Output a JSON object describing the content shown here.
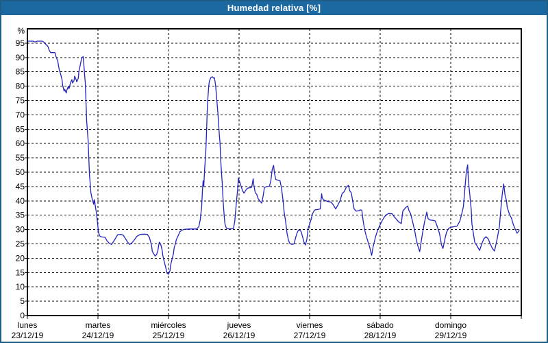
{
  "window": {
    "title": "Humedad relativa [%]"
  },
  "colors": {
    "titlebar_bg": "#1C69A1",
    "titlebar_fg": "#FFFFFF",
    "frame_border": "#1E5E86",
    "grid": "#000000",
    "axis": "#000000",
    "plot_bg": "#FFFFFF",
    "line": "#2222C0"
  },
  "chart_data": {
    "type": "line",
    "title": "Humedad relativa [%]",
    "unit_label": "%",
    "ylim": [
      0,
      100
    ],
    "y_tick_step": 5,
    "y_ticks": [
      0,
      5,
      10,
      15,
      20,
      25,
      30,
      35,
      40,
      45,
      50,
      55,
      60,
      65,
      70,
      75,
      80,
      85,
      90,
      95
    ],
    "x_range_days": [
      0,
      7
    ],
    "x_ticks": [
      {
        "day": "lunes",
        "date": "23/12/19"
      },
      {
        "day": "martes",
        "date": "24/12/19"
      },
      {
        "day": "miércoles",
        "date": "25/12/19"
      },
      {
        "day": "jueves",
        "date": "26/12/19"
      },
      {
        "day": "viernes",
        "date": "27/12/19"
      },
      {
        "day": "sábado",
        "date": "28/12/19"
      },
      {
        "day": "domingo",
        "date": "29/12/19"
      }
    ],
    "grid": "dashed",
    "legend_position": "none",
    "series": [
      {
        "name": "Humedad relativa [%]",
        "points": [
          [
            0.0,
            95.7
          ],
          [
            0.08,
            95.7
          ],
          [
            0.11,
            95.4
          ],
          [
            0.14,
            95.7
          ],
          [
            0.21,
            95.7
          ],
          [
            0.24,
            95.2
          ],
          [
            0.26,
            94.6
          ],
          [
            0.29,
            93.9
          ],
          [
            0.31,
            92.5
          ],
          [
            0.33,
            91.7
          ],
          [
            0.39,
            91.7
          ],
          [
            0.41,
            90.0
          ],
          [
            0.43,
            88.7
          ],
          [
            0.45,
            85.9
          ],
          [
            0.47,
            84.3
          ],
          [
            0.49,
            82.3
          ],
          [
            0.5,
            80.3
          ],
          [
            0.52,
            78.3
          ],
          [
            0.53,
            78.9
          ],
          [
            0.55,
            77.6
          ],
          [
            0.56,
            78.7
          ],
          [
            0.58,
            79.9
          ],
          [
            0.59,
            79.1
          ],
          [
            0.61,
            81.1
          ],
          [
            0.63,
            82.3
          ],
          [
            0.64,
            81.1
          ],
          [
            0.66,
            81.9
          ],
          [
            0.67,
            83.5
          ],
          [
            0.69,
            82.3
          ],
          [
            0.7,
            81.5
          ],
          [
            0.72,
            82.7
          ],
          [
            0.73,
            85.1
          ],
          [
            0.75,
            87.5
          ],
          [
            0.77,
            89.9
          ],
          [
            0.79,
            90.3
          ],
          [
            0.8,
            87.5
          ],
          [
            0.81,
            84.3
          ],
          [
            0.82,
            81.1
          ],
          [
            0.83,
            75.0
          ],
          [
            0.84,
            68.0
          ],
          [
            0.86,
            61.2
          ],
          [
            0.88,
            49.2
          ],
          [
            0.9,
            42.8
          ],
          [
            0.92,
            40.4
          ],
          [
            0.94,
            38.8
          ],
          [
            0.95,
            40.4
          ],
          [
            0.97,
            37.0
          ],
          [
            0.98,
            35.6
          ],
          [
            0.99,
            33.2
          ],
          [
            1.0,
            30.8
          ],
          [
            1.01,
            28.8
          ],
          [
            1.03,
            27.6
          ],
          [
            1.06,
            27.4
          ],
          [
            1.1,
            27.3
          ],
          [
            1.13,
            26.0
          ],
          [
            1.16,
            25.2
          ],
          [
            1.19,
            24.8
          ],
          [
            1.22,
            25.8
          ],
          [
            1.25,
            27.0
          ],
          [
            1.28,
            28.2
          ],
          [
            1.33,
            28.3
          ],
          [
            1.36,
            28.0
          ],
          [
            1.39,
            26.8
          ],
          [
            1.42,
            25.6
          ],
          [
            1.45,
            24.8
          ],
          [
            1.48,
            25.3
          ],
          [
            1.51,
            26.2
          ],
          [
            1.55,
            27.6
          ],
          [
            1.6,
            28.3
          ],
          [
            1.66,
            28.4
          ],
          [
            1.7,
            28.3
          ],
          [
            1.73,
            27.2
          ],
          [
            1.76,
            24.4
          ],
          [
            1.77,
            22.4
          ],
          [
            1.81,
            20.8
          ],
          [
            1.83,
            21.2
          ],
          [
            1.85,
            22.8
          ],
          [
            1.86,
            24.4
          ],
          [
            1.87,
            25.6
          ],
          [
            1.89,
            24.8
          ],
          [
            1.91,
            22.8
          ],
          [
            1.92,
            20.8
          ],
          [
            1.94,
            18.8
          ],
          [
            1.96,
            16.8
          ],
          [
            1.98,
            14.8
          ],
          [
            2.0,
            14.4
          ],
          [
            2.02,
            15.6
          ],
          [
            2.03,
            17.6
          ],
          [
            2.05,
            19.6
          ],
          [
            2.07,
            21.6
          ],
          [
            2.08,
            23.6
          ],
          [
            2.1,
            25.2
          ],
          [
            2.11,
            26.4
          ],
          [
            2.14,
            28.0
          ],
          [
            2.16,
            29.2
          ],
          [
            2.19,
            29.8
          ],
          [
            2.23,
            30.1
          ],
          [
            2.3,
            30.2
          ],
          [
            2.4,
            30.2
          ],
          [
            2.43,
            31.0
          ],
          [
            2.45,
            33.5
          ],
          [
            2.47,
            38.0
          ],
          [
            2.48,
            43.0
          ],
          [
            2.49,
            47.0
          ],
          [
            2.5,
            45.0
          ],
          [
            2.51,
            50.0
          ],
          [
            2.53,
            58.0
          ],
          [
            2.54,
            64.6
          ],
          [
            2.55,
            72.0
          ],
          [
            2.56,
            76.6
          ],
          [
            2.57,
            80.0
          ],
          [
            2.58,
            81.8
          ],
          [
            2.6,
            83.0
          ],
          [
            2.62,
            83.3
          ],
          [
            2.64,
            82.8
          ],
          [
            2.65,
            83.0
          ],
          [
            2.66,
            81.5
          ],
          [
            2.67,
            79.7
          ],
          [
            2.68,
            76.6
          ],
          [
            2.7,
            70.6
          ],
          [
            2.72,
            63.0
          ],
          [
            2.73,
            60.2
          ],
          [
            2.74,
            54.2
          ],
          [
            2.75,
            50.0
          ],
          [
            2.76,
            46.6
          ],
          [
            2.77,
            42.0
          ],
          [
            2.78,
            38.0
          ],
          [
            2.79,
            34.5
          ],
          [
            2.8,
            32.0
          ],
          [
            2.82,
            30.4
          ],
          [
            2.86,
            30.2
          ],
          [
            2.92,
            30.3
          ],
          [
            2.94,
            33.0
          ],
          [
            2.96,
            39.0
          ],
          [
            2.98,
            44.0
          ],
          [
            2.99,
            47.8
          ],
          [
            3.01,
            46.5
          ],
          [
            3.03,
            45.0
          ],
          [
            3.05,
            43.5
          ],
          [
            3.07,
            42.7
          ],
          [
            3.09,
            43.5
          ],
          [
            3.11,
            44.2
          ],
          [
            3.13,
            44.5
          ],
          [
            3.16,
            44.6
          ],
          [
            3.18,
            44.8
          ],
          [
            3.2,
            47.7
          ],
          [
            3.21,
            45.5
          ],
          [
            3.23,
            42.8
          ],
          [
            3.25,
            42.3
          ],
          [
            3.27,
            40.8
          ],
          [
            3.3,
            39.8
          ],
          [
            3.32,
            39.2
          ],
          [
            3.34,
            41.5
          ],
          [
            3.36,
            44.7
          ],
          [
            3.4,
            45.0
          ],
          [
            3.43,
            45.1
          ],
          [
            3.45,
            47.0
          ],
          [
            3.47,
            51.0
          ],
          [
            3.49,
            52.4
          ],
          [
            3.5,
            49.8
          ],
          [
            3.52,
            47.5
          ],
          [
            3.55,
            47.2
          ],
          [
            3.58,
            47.0
          ],
          [
            3.6,
            44.7
          ],
          [
            3.62,
            40.7
          ],
          [
            3.64,
            35.9
          ],
          [
            3.66,
            32.8
          ],
          [
            3.68,
            28.7
          ],
          [
            3.7,
            26.3
          ],
          [
            3.72,
            25.1
          ],
          [
            3.75,
            24.8
          ],
          [
            3.78,
            25.0
          ],
          [
            3.8,
            27.0
          ],
          [
            3.82,
            28.7
          ],
          [
            3.84,
            29.7
          ],
          [
            3.86,
            29.8
          ],
          [
            3.88,
            29.3
          ],
          [
            3.9,
            27.5
          ],
          [
            3.92,
            25.6
          ],
          [
            3.94,
            24.6
          ],
          [
            3.96,
            26.5
          ],
          [
            3.98,
            30.4
          ],
          [
            4.0,
            31.9
          ],
          [
            4.02,
            33.5
          ],
          [
            4.04,
            35.4
          ],
          [
            4.06,
            36.4
          ],
          [
            4.08,
            36.9
          ],
          [
            4.12,
            37.0
          ],
          [
            4.15,
            37.2
          ],
          [
            4.17,
            42.5
          ],
          [
            4.18,
            41.0
          ],
          [
            4.2,
            40.3
          ],
          [
            4.23,
            40.0
          ],
          [
            4.27,
            39.7
          ],
          [
            4.3,
            39.6
          ],
          [
            4.33,
            38.8
          ],
          [
            4.37,
            37.2
          ],
          [
            4.4,
            38.5
          ],
          [
            4.43,
            40.0
          ],
          [
            4.46,
            42.5
          ],
          [
            4.49,
            43.2
          ],
          [
            4.52,
            44.8
          ],
          [
            4.55,
            45.4
          ],
          [
            4.57,
            43.5
          ],
          [
            4.59,
            42.8
          ],
          [
            4.61,
            40.0
          ],
          [
            4.63,
            37.2
          ],
          [
            4.66,
            36.4
          ],
          [
            4.7,
            36.6
          ],
          [
            4.72,
            36.9
          ],
          [
            4.74,
            36.7
          ],
          [
            4.76,
            32.8
          ],
          [
            4.78,
            30.0
          ],
          [
            4.8,
            28.0
          ],
          [
            4.83,
            25.5
          ],
          [
            4.85,
            24.0
          ],
          [
            4.88,
            21.0
          ],
          [
            4.9,
            24.0
          ],
          [
            4.92,
            26.0
          ],
          [
            4.93,
            27.1
          ],
          [
            4.96,
            29.5
          ],
          [
            5.0,
            31.7
          ],
          [
            5.03,
            33.2
          ],
          [
            5.06,
            34.4
          ],
          [
            5.09,
            35.2
          ],
          [
            5.12,
            35.6
          ],
          [
            5.17,
            35.5
          ],
          [
            5.2,
            34.4
          ],
          [
            5.23,
            33.6
          ],
          [
            5.26,
            32.7
          ],
          [
            5.3,
            32.1
          ],
          [
            5.32,
            36.4
          ],
          [
            5.36,
            37.6
          ],
          [
            5.39,
            38.2
          ],
          [
            5.41,
            36.5
          ],
          [
            5.43,
            35.6
          ],
          [
            5.46,
            32.7
          ],
          [
            5.49,
            29.5
          ],
          [
            5.51,
            26.8
          ],
          [
            5.53,
            24.6
          ],
          [
            5.56,
            22.3
          ],
          [
            5.58,
            25.5
          ],
          [
            5.6,
            28.7
          ],
          [
            5.63,
            32.8
          ],
          [
            5.66,
            36.1
          ],
          [
            5.68,
            33.8
          ],
          [
            5.71,
            33.3
          ],
          [
            5.75,
            33.2
          ],
          [
            5.78,
            33.0
          ],
          [
            5.81,
            31.0
          ],
          [
            5.84,
            28.7
          ],
          [
            5.87,
            24.6
          ],
          [
            5.89,
            23.4
          ],
          [
            5.92,
            27.0
          ],
          [
            5.94,
            29.0
          ],
          [
            5.97,
            30.4
          ],
          [
            6.0,
            30.8
          ],
          [
            6.05,
            31.0
          ],
          [
            6.09,
            31.2
          ],
          [
            6.13,
            33.0
          ],
          [
            6.16,
            35.9
          ],
          [
            6.18,
            38.0
          ],
          [
            6.2,
            44.0
          ],
          [
            6.22,
            50.0
          ],
          [
            6.24,
            52.6
          ],
          [
            6.25,
            47.0
          ],
          [
            6.27,
            42.3
          ],
          [
            6.29,
            37.0
          ],
          [
            6.3,
            32.0
          ],
          [
            6.32,
            28.7
          ],
          [
            6.34,
            25.6
          ],
          [
            6.37,
            24.4
          ],
          [
            6.41,
            22.7
          ],
          [
            6.44,
            25.0
          ],
          [
            6.47,
            26.8
          ],
          [
            6.5,
            27.5
          ],
          [
            6.53,
            26.8
          ],
          [
            6.56,
            25.0
          ],
          [
            6.59,
            23.4
          ],
          [
            6.62,
            22.5
          ],
          [
            6.66,
            27.0
          ],
          [
            6.69,
            31.1
          ],
          [
            6.71,
            37.0
          ],
          [
            6.73,
            42.3
          ],
          [
            6.75,
            45.9
          ],
          [
            6.77,
            42.0
          ],
          [
            6.79,
            40.0
          ],
          [
            6.8,
            37.8
          ],
          [
            6.83,
            35.5
          ],
          [
            6.86,
            34.0
          ],
          [
            6.89,
            31.5
          ],
          [
            6.92,
            29.8
          ],
          [
            6.94,
            28.7
          ],
          [
            6.96,
            29.3
          ],
          [
            6.97,
            29.9
          ]
        ]
      }
    ]
  }
}
